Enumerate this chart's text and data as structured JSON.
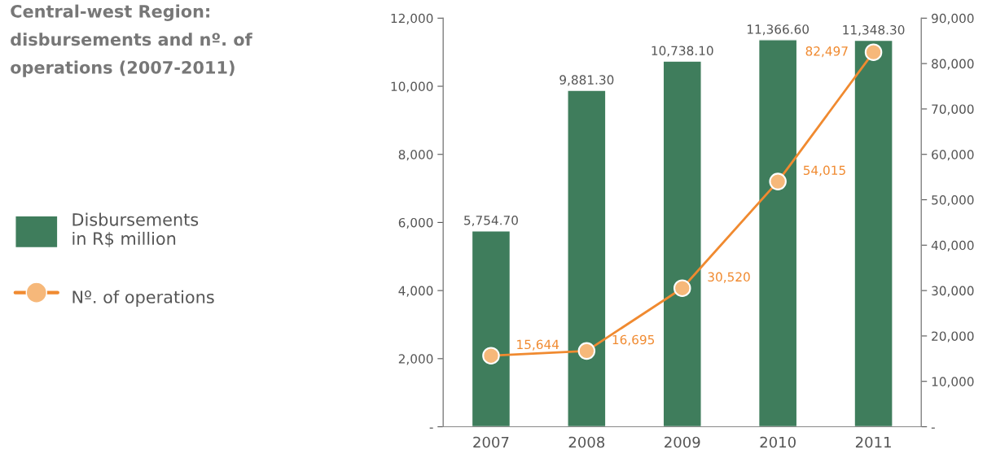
{
  "chart_data": {
    "type": "bar",
    "title": "Central-west Region:\ndisbursements and nº. of\noperations (2007-2011)",
    "categories": [
      "2007",
      "2008",
      "2009",
      "2010",
      "2011"
    ],
    "series": [
      {
        "name": "Disbursements\nin R$ million",
        "color": "#3f7d5c",
        "values": [
          5754.7,
          9881.3,
          10738.1,
          11366.6,
          11348.3
        ],
        "value_labels": [
          "5,754.70",
          "9,881.30",
          "10,738.10",
          "11,366.60",
          "11,348.30"
        ]
      },
      {
        "name": "Nº. of operations",
        "type": "line",
        "axis": "y2",
        "color": "#f08a30",
        "marker": "circle",
        "values": [
          15644,
          16695,
          30520,
          54015,
          82497
        ],
        "value_labels": [
          "15,644",
          "16,695",
          "30,520",
          "54,015",
          "82,497"
        ]
      }
    ],
    "ylim": [
      0,
      12000
    ],
    "yticks": [
      {
        "value": 0,
        "label": "-"
      },
      {
        "value": 2000,
        "label": "2,000"
      },
      {
        "value": 4000,
        "label": "4,000"
      },
      {
        "value": 6000,
        "label": "6,000"
      },
      {
        "value": 8000,
        "label": "8,000"
      },
      {
        "value": 10000,
        "label": "10,000"
      },
      {
        "value": 12000,
        "label": "12,000"
      }
    ],
    "y2lim": [
      0,
      90000
    ],
    "y2ticks": [
      {
        "value": 0,
        "label": "-"
      },
      {
        "value": 10000,
        "label": "10,000"
      },
      {
        "value": 20000,
        "label": "20,000"
      },
      {
        "value": 30000,
        "label": "30,000"
      },
      {
        "value": 40000,
        "label": "40,000"
      },
      {
        "value": 50000,
        "label": "50,000"
      },
      {
        "value": 60000,
        "label": "60,000"
      },
      {
        "value": 70000,
        "label": "70,000"
      },
      {
        "value": 80000,
        "label": "80,000"
      },
      {
        "value": 90000,
        "label": "90,000"
      }
    ],
    "legend": "left",
    "grid": false
  }
}
